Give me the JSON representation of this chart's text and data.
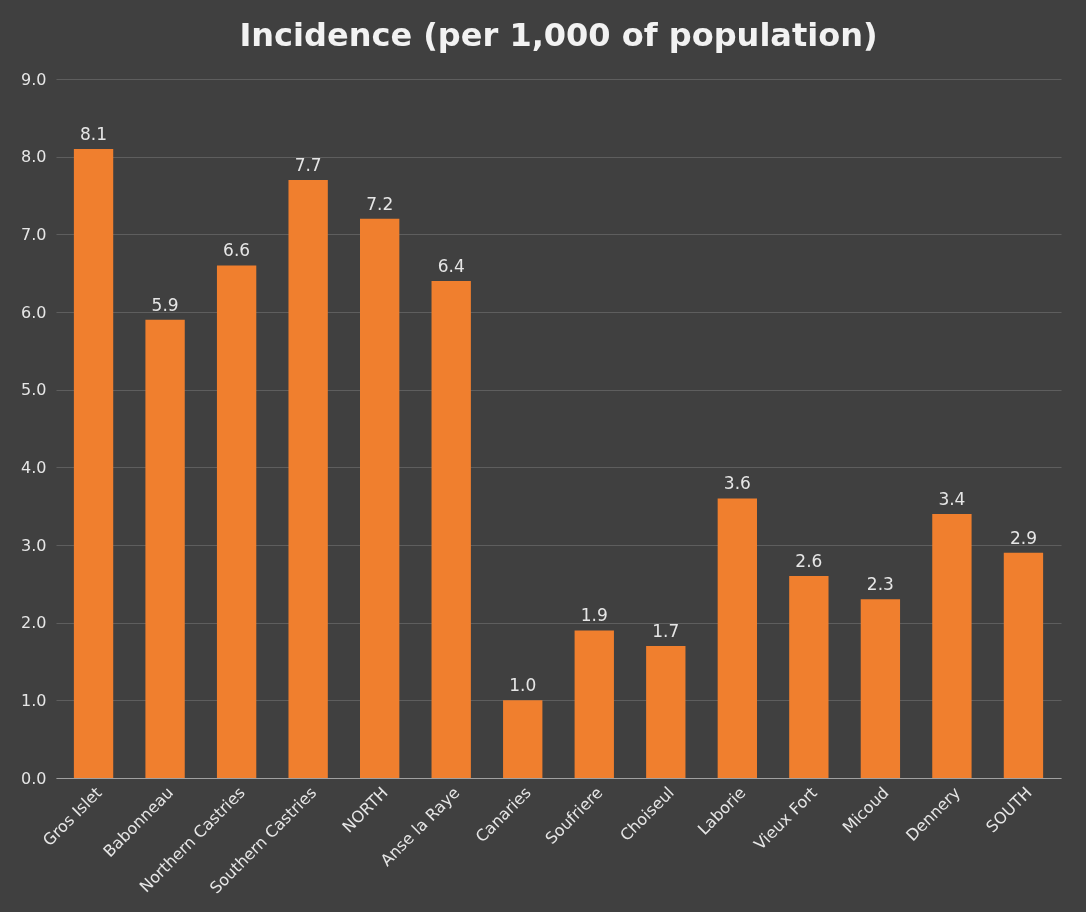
{
  "chart_data": {
    "type": "bar",
    "title": "Incidence (per 1,000 of population)",
    "categories": [
      "Gros Islet",
      "Babonneau",
      "Northern Castries",
      "Southern Castries",
      "NORTH",
      "Anse la Raye",
      "Canaries",
      "Soufriere",
      "Choiseul",
      "Laborie",
      "Vieux Fort",
      "Micoud",
      "Dennery",
      "SOUTH"
    ],
    "values": [
      8.1,
      5.9,
      6.6,
      7.7,
      7.2,
      6.4,
      1.0,
      1.9,
      1.7,
      3.6,
      2.6,
      2.3,
      3.4,
      2.9
    ],
    "color": "#f07f2e",
    "ylim": [
      0,
      9
    ],
    "yticks": [
      {
        "value": 0,
        "label": "0.0"
      },
      {
        "value": 1,
        "label": "1.0"
      },
      {
        "value": 2,
        "label": "2.0"
      },
      {
        "value": 3,
        "label": "3.0"
      },
      {
        "value": 4,
        "label": "4.0"
      },
      {
        "value": 5,
        "label": "5.0"
      },
      {
        "value": 6,
        "label": "6.0"
      },
      {
        "value": 7,
        "label": "7.0"
      },
      {
        "value": 8,
        "label": "8.0"
      },
      {
        "value": 9,
        "label": "9.0"
      }
    ],
    "value_labels": [
      "8.1",
      "5.9",
      "6.6",
      "7.7",
      "7.2",
      "6.4",
      "1.0",
      "1.9",
      "1.7",
      "3.6",
      "2.6",
      "2.3",
      "3.4",
      "2.9"
    ],
    "grid": "y"
  }
}
